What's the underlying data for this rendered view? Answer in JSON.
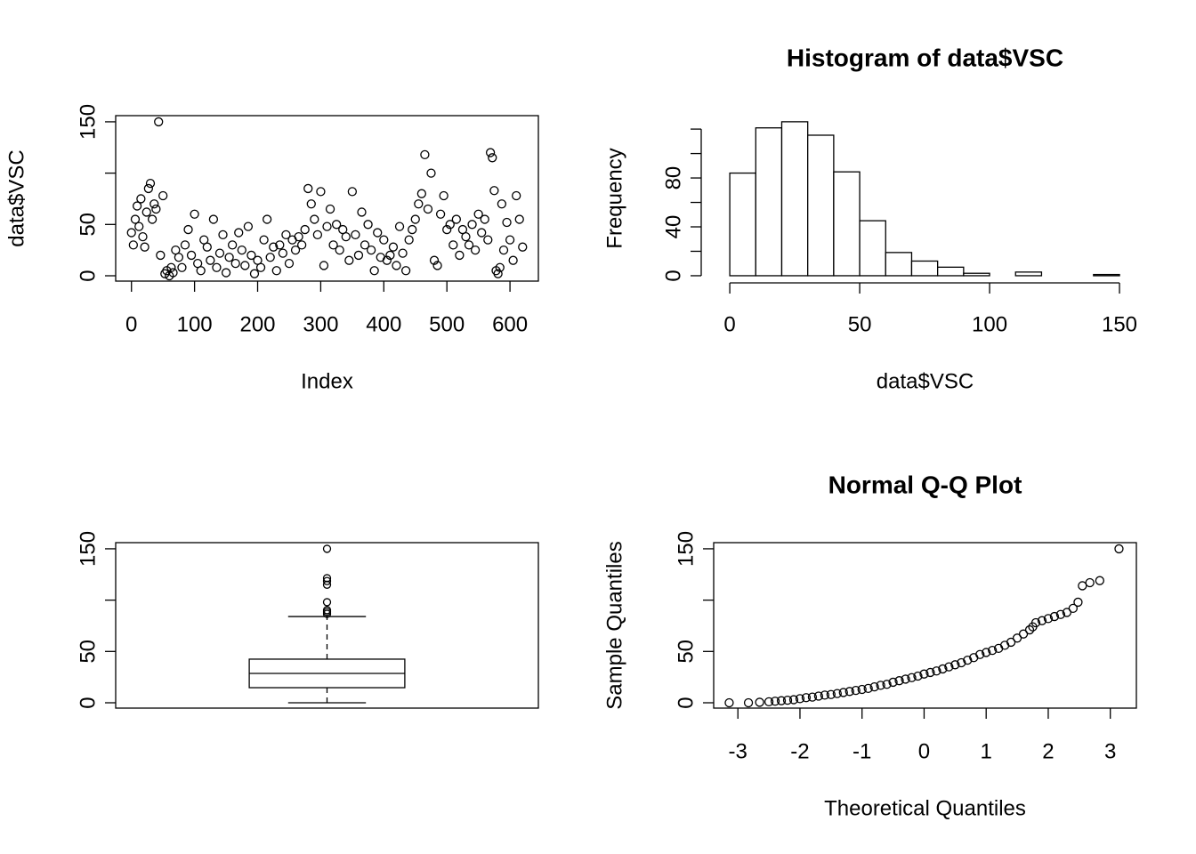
{
  "chart_data": [
    {
      "type": "scatter",
      "xlabel": "Index",
      "ylabel": "data$VSC",
      "x": [
        0,
        3,
        6,
        9,
        12,
        15,
        18,
        21,
        24,
        27,
        30,
        33,
        36,
        39,
        43,
        46,
        50,
        53,
        56,
        60,
        63,
        66,
        70,
        75,
        80,
        85,
        90,
        95,
        100,
        105,
        110,
        115,
        120,
        125,
        130,
        135,
        140,
        145,
        150,
        155,
        160,
        165,
        170,
        175,
        180,
        185,
        190,
        195,
        200,
        205,
        210,
        215,
        220,
        225,
        230,
        235,
        240,
        245,
        250,
        255,
        260,
        265,
        270,
        275,
        280,
        285,
        290,
        295,
        300,
        305,
        310,
        315,
        320,
        325,
        330,
        335,
        340,
        345,
        350,
        355,
        360,
        365,
        370,
        375,
        380,
        385,
        390,
        395,
        400,
        405,
        410,
        415,
        420,
        425,
        430,
        435,
        440,
        445,
        450,
        455,
        460,
        465,
        470,
        475,
        480,
        485,
        490,
        495,
        500,
        505,
        510,
        515,
        520,
        525,
        530,
        535,
        540,
        545,
        550,
        555,
        560,
        565,
        569,
        572,
        575,
        578,
        581,
        584,
        587,
        590,
        595,
        600,
        605,
        610,
        615,
        620
      ],
      "y": [
        42,
        30,
        55,
        68,
        48,
        75,
        38,
        28,
        62,
        85,
        90,
        55,
        70,
        65,
        150,
        20,
        78,
        2,
        5,
        0,
        8,
        3,
        25,
        18,
        8,
        30,
        45,
        20,
        60,
        12,
        5,
        35,
        28,
        15,
        55,
        8,
        22,
        40,
        3,
        18,
        30,
        12,
        42,
        25,
        10,
        48,
        20,
        2,
        15,
        8,
        35,
        55,
        18,
        28,
        5,
        30,
        22,
        40,
        12,
        35,
        25,
        38,
        30,
        45,
        85,
        70,
        55,
        40,
        82,
        10,
        48,
        65,
        30,
        50,
        25,
        45,
        38,
        15,
        82,
        40,
        20,
        62,
        30,
        50,
        25,
        5,
        42,
        18,
        35,
        15,
        20,
        28,
        10,
        48,
        22,
        5,
        35,
        45,
        55,
        70,
        80,
        118,
        65,
        100,
        15,
        10,
        60,
        78,
        45,
        50,
        30,
        55,
        20,
        45,
        38,
        30,
        50,
        25,
        60,
        42,
        55,
        35,
        120,
        115,
        83,
        5,
        2,
        8,
        70,
        25,
        52,
        35,
        15,
        78,
        55,
        28
      ],
      "xlim": [
        -25,
        645
      ],
      "ylim": [
        -5.2,
        156
      ],
      "xticks": [
        0,
        100,
        200,
        300,
        400,
        500,
        600
      ],
      "yticks": [
        0,
        50,
        150
      ],
      "minor_yticks": [
        100
      ],
      "color": "#000000"
    },
    {
      "type": "histogram",
      "title": "Histogram of data$VSC",
      "xlabel": "data$VSC",
      "ylabel": "Frequency",
      "bins": [
        0,
        10,
        20,
        30,
        40,
        50,
        60,
        70,
        80,
        90,
        100,
        110,
        120,
        130,
        140,
        150
      ],
      "counts": [
        84,
        121,
        126,
        115,
        85,
        45,
        19,
        12,
        7,
        2,
        0,
        3,
        0,
        0,
        1
      ],
      "xlim": [
        -6.2,
        156.5
      ],
      "ylim": [
        -4.4,
        131
      ],
      "xticks": [
        0,
        50,
        100,
        150
      ],
      "yticks": [
        0,
        40,
        80
      ],
      "minor_yticks": [
        20,
        60,
        100,
        120
      ],
      "color": "#ffffff"
    },
    {
      "type": "box",
      "stats": {
        "min": 0,
        "q1": 14.7,
        "median": 28.6,
        "q3": 42.5,
        "max": 84
      },
      "outliers": [
        86.7,
        88.5,
        90.2,
        98,
        115,
        118.6,
        121.4,
        150
      ],
      "ylim": [
        -5.2,
        156
      ],
      "yticks": [
        0,
        50,
        150
      ],
      "minor_yticks": [
        100
      ]
    },
    {
      "type": "scatter",
      "title": "Normal Q-Q Plot",
      "xlabel": "Theoretical Quantiles",
      "ylabel": "Sample Quantiles",
      "x": [
        -3.14,
        -2.83,
        -2.65,
        -2.5,
        -2.4,
        -2.3,
        -2.2,
        -2.1,
        -2.0,
        -1.9,
        -1.8,
        -1.7,
        -1.6,
        -1.5,
        -1.4,
        -1.3,
        -1.2,
        -1.1,
        -1.0,
        -0.9,
        -0.8,
        -0.7,
        -0.6,
        -0.5,
        -0.4,
        -0.3,
        -0.2,
        -0.1,
        0,
        0.1,
        0.2,
        0.3,
        0.4,
        0.5,
        0.6,
        0.7,
        0.8,
        0.9,
        1.0,
        1.1,
        1.2,
        1.3,
        1.4,
        1.5,
        1.6,
        1.7,
        1.75,
        1.8,
        1.9,
        2.0,
        2.1,
        2.2,
        2.3,
        2.4,
        2.48,
        2.55,
        2.67,
        2.83,
        3.14
      ],
      "y": [
        0,
        0,
        0.5,
        1,
        1.5,
        2,
        2.5,
        3,
        4,
        5,
        5.5,
        6.5,
        7.5,
        8,
        9,
        10,
        11,
        12,
        13,
        14,
        15.5,
        17,
        18,
        20,
        21.5,
        23,
        24.5,
        26,
        28,
        29.5,
        31,
        33,
        35,
        37,
        39,
        41.5,
        44,
        47,
        49,
        51,
        53,
        56,
        59,
        63,
        67,
        71,
        74,
        78,
        80,
        82,
        84,
        86,
        88,
        92,
        98,
        114,
        117,
        119,
        150
      ],
      "xlim": [
        -3.39,
        3.42
      ],
      "ylim": [
        -5.2,
        156
      ],
      "xticks": [
        -3,
        -2,
        -1,
        0,
        1,
        2,
        3
      ],
      "yticks": [
        0,
        50,
        150
      ],
      "minor_yticks": [
        100
      ],
      "color": "#000000"
    }
  ]
}
